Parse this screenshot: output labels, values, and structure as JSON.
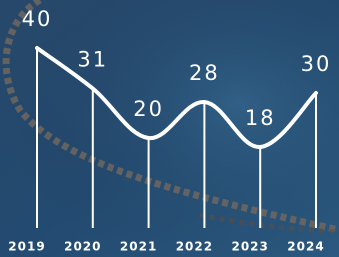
{
  "chart_data": {
    "type": "line",
    "categories": [
      "2019",
      "2020",
      "2021",
      "2022",
      "2023",
      "2024"
    ],
    "values": [
      40,
      31,
      20,
      28,
      18,
      30
    ],
    "color": "#ffffff"
  }
}
